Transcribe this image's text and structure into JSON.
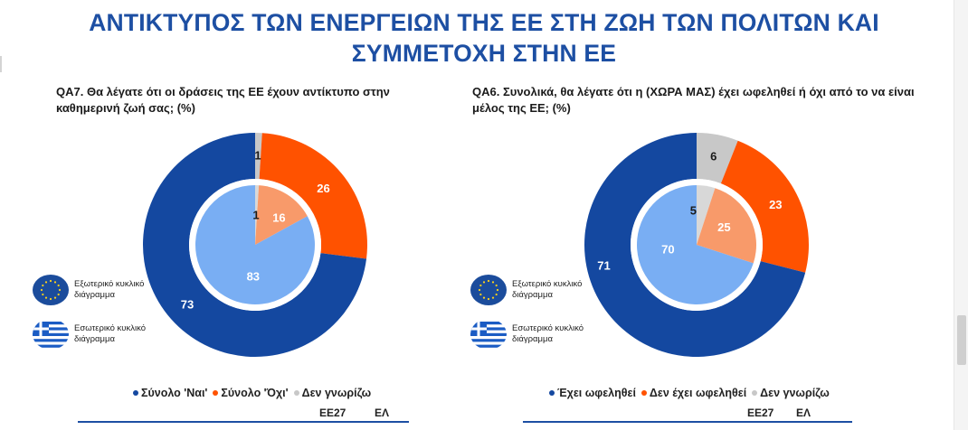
{
  "title": "ΑΝΤΙΚΤΥΠΟΣ ΤΩΝ ΕΝΕΡΓΕΙΩΝ ΤΗΣ ΕΕ ΣΤΗ ΖΩΗ ΤΩΝ ΠΟΛΙΤΩΝ ΚΑΙ ΣΥΜΜΕΤΟΧΗ ΣΤΗΝ ΕΕ",
  "key": {
    "outer": "Εξωτερικό κυκλικό διάγραμμα",
    "inner": "Εσωτερικό κυκλικό διάγραμμα",
    "outer_icon": "eu-flag-icon",
    "inner_icon": "greek-flag-icon"
  },
  "footer": {
    "eu": "ΕΕ27",
    "gr": "ΕΛ"
  },
  "colors": {
    "title": "#1d4fa3",
    "outer": [
      "#1448a0",
      "#ff5200",
      "#c8c8c8"
    ],
    "inner": [
      "#79aef3",
      "#f89a6a",
      "#d8d8d8"
    ],
    "eu_flag": "#1b4c9c",
    "star": "#ffd21a"
  },
  "chart_data": [
    {
      "type": "pie",
      "question": "QA7. Θα λέγατε ότι οι δράσεις της ΕΕ έχουν αντίκτυπο στην καθημερινή ζωή σας; (%)",
      "categories": [
        "Σύνολο 'Ναι'",
        "Σύνολο 'Όχι'",
        "Δεν γνωρίζω"
      ],
      "series": [
        {
          "name": "Εξωτερικό κυκλικό διάγραμμα",
          "values": [
            73,
            26,
            1
          ]
        },
        {
          "name": "Εσωτερικό κυκλικό διάγραμμα",
          "values": [
            83,
            16,
            1
          ]
        }
      ]
    },
    {
      "type": "pie",
      "question": "QA6. Συνολικά, θα λέγατε ότι η (ΧΩΡΑ ΜΑΣ) έχει ωφεληθεί ή όχι από το να είναι μέλος της ΕΕ; (%)",
      "categories": [
        "Έχει ωφεληθεί",
        "Δεν έχει ωφεληθεί",
        "Δεν γνωρίζω"
      ],
      "series": [
        {
          "name": "Εξωτερικό κυκλικό διάγραμμα",
          "values": [
            71,
            23,
            6
          ]
        },
        {
          "name": "Εσωτερικό κυκλικό διάγραμμα",
          "values": [
            70,
            25,
            5
          ]
        }
      ]
    }
  ]
}
